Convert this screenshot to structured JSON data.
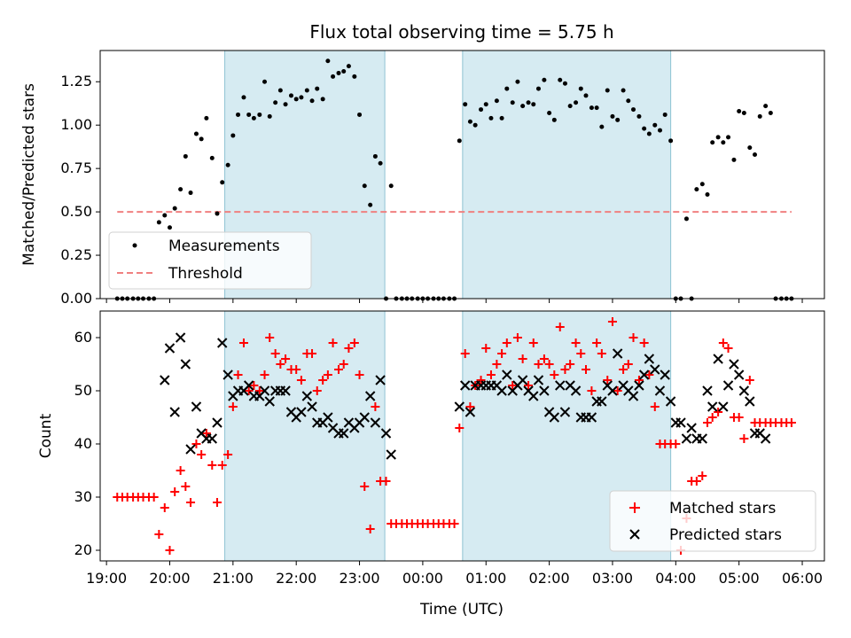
{
  "chart_data": [
    {
      "type": "scatter",
      "title": "Flux total observing time = 5.75 h",
      "xlabel": "",
      "ylabel": "Matched/Predicted stars",
      "ylim": [
        0,
        1.43
      ],
      "xlim": [
        18.9,
        30.35
      ],
      "yticks": [
        0,
        0.25,
        0.5,
        0.75,
        1.0,
        1.25
      ],
      "ytick_labels": [
        "0.00",
        "0.25",
        "0.50",
        "0.75",
        "1.00",
        "1.25"
      ],
      "shaded_regions": [
        [
          20.87,
          23.4
        ],
        [
          24.63,
          27.92
        ]
      ],
      "threshold": {
        "name": "Threshold",
        "value": 0.5,
        "x_range": [
          19.17,
          29.83
        ],
        "color": "#f08080"
      },
      "series": [
        {
          "name": "Measurements",
          "color": "#000000",
          "x": [
            19.17,
            19.25,
            19.33,
            19.42,
            19.5,
            19.58,
            19.67,
            19.75,
            19.83,
            19.92,
            20.0,
            20.08,
            20.17,
            20.25,
            20.33,
            20.42,
            20.5,
            20.58,
            20.67,
            20.75,
            20.83,
            20.92,
            21.0,
            21.08,
            21.17,
            21.25,
            21.33,
            21.42,
            21.5,
            21.58,
            21.67,
            21.75,
            21.83,
            21.92,
            22.0,
            22.08,
            22.17,
            22.25,
            22.33,
            22.42,
            22.5,
            22.58,
            22.67,
            22.75,
            22.83,
            22.92,
            23.0,
            23.08,
            23.17,
            23.25,
            23.33,
            23.42,
            23.5,
            23.58,
            23.67,
            23.75,
            23.83,
            23.92,
            24.0,
            24.08,
            24.17,
            24.25,
            24.33,
            24.42,
            24.5,
            24.58,
            24.67,
            24.75,
            24.83,
            24.92,
            25.0,
            25.08,
            25.17,
            25.25,
            25.33,
            25.42,
            25.5,
            25.58,
            25.67,
            25.75,
            25.83,
            25.92,
            26.0,
            26.08,
            26.17,
            26.25,
            26.33,
            26.42,
            26.5,
            26.58,
            26.67,
            26.75,
            26.83,
            26.92,
            27.0,
            27.08,
            27.17,
            27.25,
            27.33,
            27.42,
            27.5,
            27.58,
            27.67,
            27.75,
            27.83,
            27.92,
            28.0,
            28.08,
            28.17,
            28.25,
            28.33,
            28.42,
            28.5,
            28.58,
            28.67,
            28.75,
            28.83,
            28.92,
            29.0,
            29.08,
            29.17,
            29.25,
            29.33,
            29.42,
            29.5,
            29.58,
            29.67,
            29.75,
            29.83
          ],
          "y": [
            0,
            0,
            0,
            0,
            0,
            0,
            0,
            0,
            0.44,
            0.48,
            0.41,
            0.52,
            0.63,
            0.82,
            0.61,
            0.95,
            0.92,
            1.04,
            0.81,
            0.49,
            0.67,
            0.77,
            0.94,
            1.06,
            1.16,
            1.06,
            1.04,
            1.06,
            1.25,
            1.05,
            1.13,
            1.2,
            1.12,
            1.17,
            1.15,
            1.16,
            1.2,
            1.14,
            1.21,
            1.15,
            1.37,
            1.28,
            1.3,
            1.31,
            1.34,
            1.28,
            1.06,
            0.65,
            0.54,
            0.82,
            0.78,
            0,
            0.65,
            0,
            0,
            0,
            0,
            0,
            0,
            0,
            0,
            0,
            0,
            0,
            0,
            0.91,
            1.12,
            1.02,
            1.0,
            1.09,
            1.12,
            1.04,
            1.14,
            1.04,
            1.21,
            1.13,
            1.25,
            1.11,
            1.13,
            1.12,
            1.21,
            1.26,
            1.07,
            1.03,
            1.26,
            1.24,
            1.11,
            1.13,
            1.21,
            1.17,
            1.1,
            1.1,
            0.99,
            1.2,
            1.05,
            1.03,
            1.2,
            1.14,
            1.09,
            1.05,
            0.98,
            0.95,
            1.0,
            0.97,
            1.06,
            0.91,
            0,
            0,
            0.46,
            0,
            0.63,
            0.66,
            0.6,
            0.9,
            0.93,
            0.9,
            0.93,
            0.8,
            1.08,
            1.07,
            0.87,
            0.83,
            1.05,
            1.11,
            1.07,
            0,
            0,
            0,
            0
          ]
        }
      ],
      "legend": {
        "position": "lower-left",
        "entries": [
          "Measurements",
          "Threshold"
        ]
      }
    },
    {
      "type": "scatter",
      "title": "",
      "xlabel": "Time (UTC)",
      "ylabel": "Count",
      "ylim": [
        18,
        65
      ],
      "xlim": [
        18.9,
        30.35
      ],
      "yticks": [
        20,
        30,
        40,
        50,
        60
      ],
      "ytick_labels": [
        "20",
        "30",
        "40",
        "50",
        "60"
      ],
      "xticks": [
        19,
        20,
        21,
        22,
        23,
        24,
        25,
        26,
        27,
        28,
        29,
        30
      ],
      "xtick_labels": [
        "19:00",
        "20:00",
        "21:00",
        "22:00",
        "23:00",
        "00:00",
        "01:00",
        "02:00",
        "03:00",
        "04:00",
        "05:00",
        "06:00"
      ],
      "shaded_regions": [
        [
          20.87,
          23.4
        ],
        [
          24.63,
          27.92
        ]
      ],
      "series": [
        {
          "name": "Matched stars",
          "marker": "plus",
          "color": "#ff0000",
          "x": [
            19.17,
            19.25,
            19.33,
            19.42,
            19.5,
            19.58,
            19.67,
            19.75,
            19.83,
            19.92,
            20.0,
            20.08,
            20.17,
            20.25,
            20.33,
            20.42,
            20.5,
            20.58,
            20.67,
            20.75,
            20.83,
            20.92,
            21.0,
            21.08,
            21.17,
            21.25,
            21.33,
            21.42,
            21.5,
            21.58,
            21.67,
            21.75,
            21.83,
            21.92,
            22.0,
            22.08,
            22.17,
            22.25,
            22.33,
            22.42,
            22.5,
            22.58,
            22.67,
            22.75,
            22.83,
            22.92,
            23.0,
            23.08,
            23.17,
            23.25,
            23.33,
            23.42,
            23.5,
            23.58,
            23.67,
            23.75,
            23.83,
            23.92,
            24.0,
            24.08,
            24.17,
            24.25,
            24.33,
            24.42,
            24.5,
            24.58,
            24.67,
            24.75,
            24.83,
            24.92,
            25.0,
            25.08,
            25.17,
            25.25,
            25.33,
            25.42,
            25.5,
            25.58,
            25.67,
            25.75,
            25.83,
            25.92,
            26.0,
            26.08,
            26.17,
            26.25,
            26.33,
            26.42,
            26.5,
            26.58,
            26.67,
            26.75,
            26.83,
            26.92,
            27.0,
            27.08,
            27.17,
            27.25,
            27.33,
            27.42,
            27.5,
            27.58,
            27.67,
            27.75,
            27.83,
            27.92,
            28.0,
            28.08,
            28.17,
            28.25,
            28.33,
            28.42,
            28.5,
            28.58,
            28.67,
            28.75,
            28.83,
            28.92,
            29.0,
            29.08,
            29.17,
            29.25,
            29.33,
            29.42,
            29.5,
            29.58,
            29.67,
            29.75,
            29.83
          ],
          "y": [
            30,
            30,
            30,
            30,
            30,
            30,
            30,
            30,
            23,
            28,
            20,
            31,
            35,
            32,
            29,
            40,
            38,
            42,
            36,
            29,
            36,
            38,
            47,
            53,
            59,
            50,
            51,
            50,
            53,
            60,
            57,
            55,
            56,
            54,
            54,
            52,
            57,
            57,
            50,
            52,
            53,
            59,
            54,
            55,
            58,
            59,
            53,
            32,
            24,
            47,
            33,
            33,
            25,
            25,
            25,
            25,
            25,
            25,
            25,
            25,
            25,
            25,
            25,
            25,
            25,
            43,
            57,
            47,
            51,
            52,
            58,
            53,
            55,
            57,
            59,
            51,
            60,
            56,
            51,
            59,
            55,
            56,
            55,
            53,
            62,
            54,
            55,
            59,
            57,
            54,
            50,
            59,
            57,
            52,
            63,
            50,
            54,
            55,
            60,
            52,
            59,
            53,
            47,
            40,
            40,
            40,
            40,
            20,
            26,
            33,
            33,
            34,
            44,
            45,
            46,
            59,
            58,
            45,
            45,
            41,
            52,
            44,
            44,
            44,
            44,
            44,
            44,
            44,
            44
          ],
          "overrides_note": "values read from markers"
        },
        {
          "name": "Predicted stars",
          "marker": "x",
          "color": "#000000",
          "x": [
            19.92,
            20.0,
            20.08,
            20.17,
            20.25,
            20.33,
            20.42,
            20.5,
            20.58,
            20.67,
            20.75,
            20.83,
            20.92,
            21.0,
            21.08,
            21.17,
            21.25,
            21.33,
            21.42,
            21.5,
            21.58,
            21.67,
            21.75,
            21.83,
            21.92,
            22.0,
            22.08,
            22.17,
            22.25,
            22.33,
            22.42,
            22.5,
            22.58,
            22.67,
            22.75,
            22.83,
            22.92,
            23.0,
            23.08,
            23.17,
            23.25,
            23.33,
            23.42,
            23.5,
            24.58,
            24.67,
            24.75,
            24.83,
            24.92,
            25.0,
            25.08,
            25.17,
            25.25,
            25.33,
            25.42,
            25.5,
            25.58,
            25.67,
            25.75,
            25.83,
            25.92,
            26.0,
            26.08,
            26.17,
            26.25,
            26.33,
            26.42,
            26.5,
            26.58,
            26.67,
            26.75,
            26.83,
            26.92,
            27.0,
            27.08,
            27.17,
            27.25,
            27.33,
            27.42,
            27.5,
            27.58,
            27.67,
            27.75,
            27.83,
            27.92,
            28.0,
            28.08,
            28.17,
            28.25,
            28.33,
            28.42,
            28.5,
            28.58,
            28.67,
            28.75,
            28.83,
            28.92,
            29.0,
            29.08,
            29.17,
            29.25,
            29.33,
            29.42
          ],
          "y": [
            52,
            58,
            46,
            60,
            55,
            39,
            47,
            42,
            41,
            41,
            44,
            59,
            53,
            49,
            50,
            50,
            51,
            49,
            49,
            50,
            48,
            50,
            50,
            50,
            46,
            45,
            46,
            49,
            47,
            44,
            44,
            45,
            43,
            42,
            42,
            44,
            43,
            44,
            45,
            49,
            44,
            52,
            42,
            38,
            47,
            51,
            46,
            51,
            51,
            51,
            51,
            51,
            50,
            53,
            50,
            51,
            52,
            50,
            49,
            52,
            50,
            46,
            45,
            51,
            46,
            51,
            50,
            45,
            45,
            45,
            48,
            48,
            51,
            50,
            57,
            51,
            50,
            49,
            51,
            53,
            56,
            54,
            50,
            53,
            48,
            44,
            44,
            41,
            43,
            41,
            41,
            50,
            47,
            56,
            47,
            51,
            55,
            53,
            50,
            48,
            42,
            42,
            41
          ]
        }
      ],
      "legend": {
        "position": "lower-right",
        "entries": [
          "Matched stars",
          "Predicted stars"
        ]
      }
    }
  ]
}
